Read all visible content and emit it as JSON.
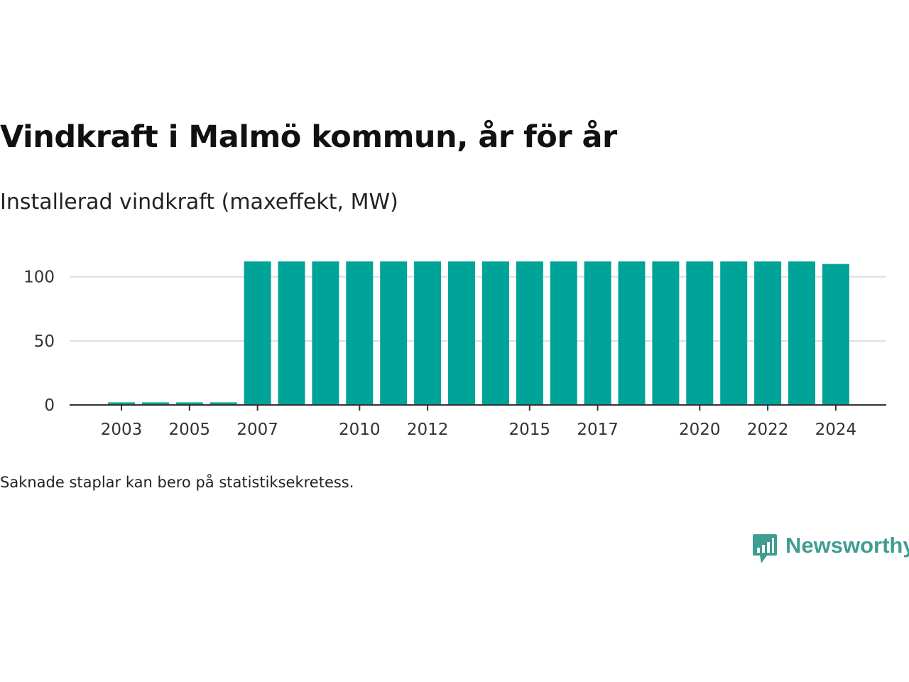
{
  "title": "Vindkraft i Malmö kommun, år för år",
  "subtitle": "Installerad vindkraft (maxeffekt, MW)",
  "note": "Saknade staplar kan bero på statistiksekretess.",
  "brand": {
    "name": "Newsworthy",
    "logo_icon": "bar-chart-speech-bubble-icon",
    "color": "#3f9d92"
  },
  "chart_data": {
    "type": "bar",
    "categories": [
      "2003",
      "2004",
      "2005",
      "2006",
      "2007",
      "2008",
      "2009",
      "2010",
      "2011",
      "2012",
      "2013",
      "2014",
      "2015",
      "2016",
      "2017",
      "2018",
      "2019",
      "2020",
      "2021",
      "2022",
      "2023",
      "2024"
    ],
    "values": [
      2,
      2,
      2,
      2,
      112,
      112,
      112,
      112,
      112,
      112,
      112,
      112,
      112,
      112,
      112,
      112,
      112,
      112,
      112,
      112,
      112,
      110
    ],
    "xticks": [
      "2003",
      "2005",
      "2007",
      "2010",
      "2012",
      "2015",
      "2017",
      "2020",
      "2022",
      "2024"
    ],
    "yticks": [
      0,
      50,
      100
    ],
    "ylim": [
      0,
      112
    ],
    "xlabel": "",
    "ylabel": "",
    "grid": true,
    "bar_color": "#00a398",
    "grid_color": "#dddddd",
    "axis_color": "#333333"
  }
}
